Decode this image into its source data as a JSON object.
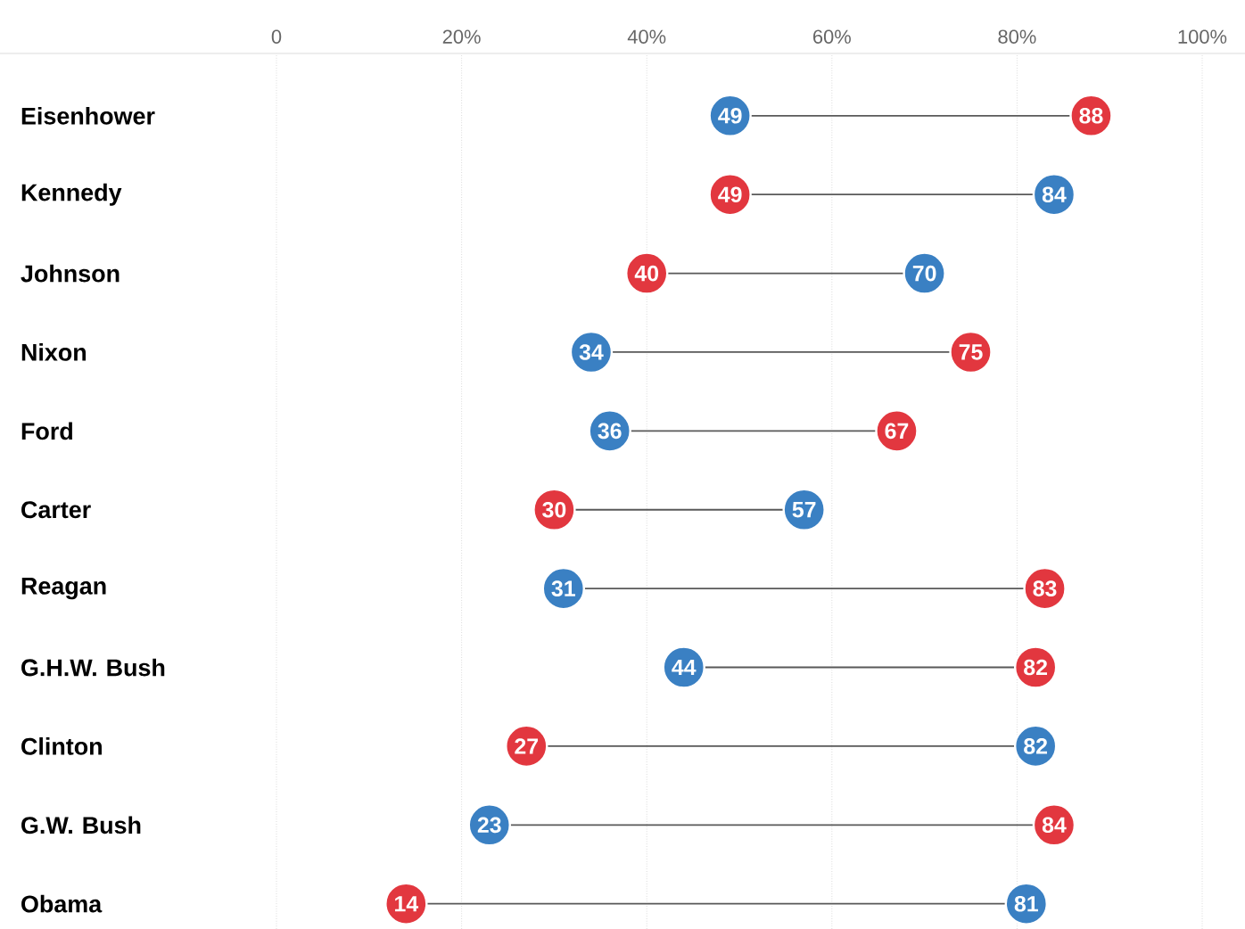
{
  "chart_data": {
    "type": "scatter",
    "orientation": "horizontal",
    "categories": [
      "Eisenhower",
      "Kennedy",
      "Johnson",
      "Nixon",
      "Ford",
      "Carter",
      "Reagan",
      "G.H.W. Bush",
      "Clinton",
      "G.W. Bush",
      "Obama"
    ],
    "series": [
      {
        "color": "#e2373f",
        "values": [
          88,
          49,
          40,
          75,
          67,
          30,
          83,
          82,
          27,
          84,
          14
        ]
      },
      {
        "color": "#3a80c3",
        "values": [
          49,
          84,
          70,
          34,
          36,
          57,
          31,
          44,
          82,
          23,
          81
        ]
      }
    ],
    "xlim": [
      0,
      100
    ],
    "xticks": [
      0,
      {
        "value": 20,
        "label": "20%"
      },
      {
        "value": 40,
        "label": "40%"
      },
      {
        "value": 60,
        "label": "60%"
      },
      {
        "value": 80,
        "label": "80%"
      },
      {
        "value": 100,
        "label": "100%"
      }
    ],
    "grid": "x",
    "marker": "circle",
    "data_labels": true
  }
}
